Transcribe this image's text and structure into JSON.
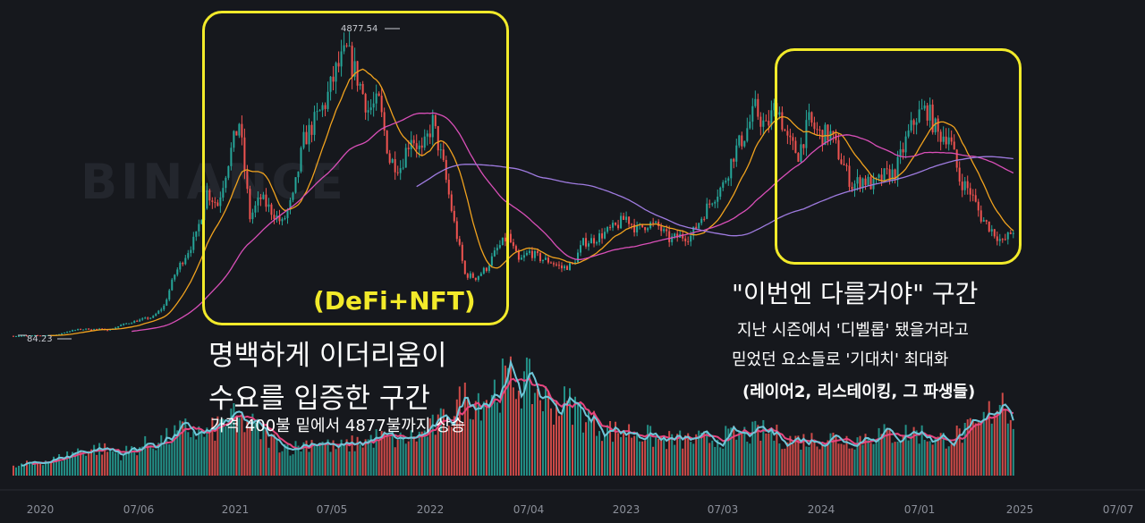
{
  "chart_data": {
    "type": "candlestick",
    "watermark": "BINANCE",
    "x_ticks": [
      "2020",
      "07/06",
      "2021",
      "07/05",
      "2022",
      "07/04",
      "2023",
      "07/03",
      "2024",
      "07/01",
      "2025",
      "07/07"
    ],
    "price_labels": {
      "high": "4877.54",
      "low": "84.23"
    },
    "colors": {
      "up": "#26a69a",
      "down": "#ef5350",
      "ma_fast": "#f0a21e",
      "ma_mid": "#d94fb8",
      "ma_slow": "#9f7be0",
      "vol_ma_fast": "#6ec6d8",
      "vol_ma_slow": "#e8457f"
    },
    "close_series": [
      [
        0,
        130
      ],
      [
        2,
        135
      ],
      [
        4,
        145
      ],
      [
        5,
        200
      ],
      [
        6,
        230
      ],
      [
        7,
        240
      ],
      [
        8,
        235
      ],
      [
        9,
        230
      ],
      [
        10,
        300
      ],
      [
        11,
        350
      ],
      [
        12,
        390
      ],
      [
        13,
        430
      ],
      [
        14,
        600
      ],
      [
        15,
        1100
      ],
      [
        16,
        1400
      ],
      [
        17,
        1700
      ],
      [
        18,
        2400
      ],
      [
        19,
        2200
      ],
      [
        20,
        2900
      ],
      [
        21,
        3500
      ],
      [
        22,
        2000
      ],
      [
        23,
        2300
      ],
      [
        24,
        2100
      ],
      [
        25,
        1900
      ],
      [
        26,
        2300
      ],
      [
        27,
        3200
      ],
      [
        28,
        3500
      ],
      [
        29,
        3800
      ],
      [
        30,
        4300
      ],
      [
        31,
        4600
      ],
      [
        32,
        4200
      ],
      [
        33,
        3700
      ],
      [
        34,
        3800
      ],
      [
        35,
        2900
      ],
      [
        36,
        2800
      ],
      [
        37,
        3300
      ],
      [
        38,
        3000
      ],
      [
        39,
        3500
      ],
      [
        40,
        2800
      ],
      [
        41,
        1900
      ],
      [
        42,
        1100
      ],
      [
        43,
        1050
      ],
      [
        44,
        1200
      ],
      [
        45,
        1500
      ],
      [
        46,
        1700
      ],
      [
        47,
        1300
      ],
      [
        48,
        1450
      ],
      [
        49,
        1350
      ],
      [
        50,
        1300
      ],
      [
        51,
        1200
      ],
      [
        52,
        1250
      ],
      [
        53,
        1600
      ],
      [
        54,
        1650
      ],
      [
        55,
        1750
      ],
      [
        56,
        1850
      ],
      [
        57,
        2000
      ],
      [
        58,
        1800
      ],
      [
        59,
        1900
      ],
      [
        60,
        1850
      ],
      [
        61,
        1650
      ],
      [
        62,
        1700
      ],
      [
        63,
        1700
      ],
      [
        64,
        2000
      ],
      [
        65,
        2300
      ],
      [
        66,
        2500
      ],
      [
        67,
        3000
      ],
      [
        68,
        3300
      ],
      [
        69,
        3700
      ],
      [
        70,
        3400
      ],
      [
        71,
        3800
      ],
      [
        72,
        3200
      ],
      [
        73,
        3000
      ],
      [
        74,
        3500
      ],
      [
        75,
        3300
      ],
      [
        76,
        3300
      ],
      [
        77,
        2900
      ],
      [
        78,
        2500
      ],
      [
        79,
        2600
      ],
      [
        80,
        2500
      ],
      [
        81,
        2650
      ],
      [
        82,
        2700
      ],
      [
        83,
        3200
      ],
      [
        84,
        3600
      ],
      [
        85,
        3700
      ],
      [
        86,
        3300
      ],
      [
        87,
        3300
      ],
      [
        88,
        2600
      ],
      [
        89,
        2400
      ],
      [
        90,
        2000
      ],
      [
        91,
        1800
      ],
      [
        92,
        1600
      ],
      [
        93,
        1800
      ]
    ],
    "volume_series": [
      [
        0,
        0.3
      ],
      [
        2,
        0.5
      ],
      [
        4,
        0.6
      ],
      [
        6,
        0.9
      ],
      [
        8,
        1.0
      ],
      [
        10,
        0.8
      ],
      [
        12,
        1.1
      ],
      [
        14,
        1.3
      ],
      [
        16,
        1.7
      ],
      [
        18,
        1.5
      ],
      [
        20,
        2.1
      ],
      [
        22,
        1.9
      ],
      [
        24,
        1.3
      ],
      [
        26,
        1.0
      ],
      [
        28,
        1.3
      ],
      [
        30,
        1.0
      ],
      [
        32,
        1.2
      ],
      [
        34,
        1.4
      ],
      [
        36,
        1.3
      ],
      [
        38,
        1.5
      ],
      [
        40,
        2.0
      ],
      [
        42,
        2.8
      ],
      [
        44,
        2.9
      ],
      [
        46,
        3.5
      ],
      [
        48,
        3.3
      ],
      [
        50,
        2.6
      ],
      [
        52,
        2.6
      ],
      [
        54,
        1.9
      ],
      [
        56,
        1.6
      ],
      [
        58,
        1.6
      ],
      [
        60,
        1.3
      ],
      [
        62,
        1.3
      ],
      [
        64,
        1.3
      ],
      [
        66,
        1.4
      ],
      [
        68,
        1.5
      ],
      [
        70,
        1.6
      ],
      [
        72,
        1.3
      ],
      [
        74,
        1.3
      ],
      [
        76,
        1.4
      ],
      [
        78,
        1.3
      ],
      [
        80,
        1.5
      ],
      [
        82,
        1.5
      ],
      [
        84,
        1.6
      ],
      [
        86,
        1.3
      ],
      [
        88,
        1.5
      ],
      [
        90,
        1.8
      ],
      [
        92,
        3.0
      ],
      [
        93,
        2.1
      ]
    ],
    "x_range": [
      0,
      104
    ],
    "price_range": [
      0,
      5000
    ]
  },
  "annotations": {
    "box1_label": "(DeFi+NFT)",
    "box1_caption_line1": "명백하게 이더리움이",
    "box1_caption_line2": "수요를 입증한 구간",
    "box1_caption_line3": "가격 400불 밑에서 4877불까지 상승",
    "box2_title": "\"이번엔 다를거야\" 구간",
    "box2_line1": "지난 시즌에서 '디벨롭' 됐을거라고",
    "box2_line2": "믿었던 요소들로 '기대치' 최대화",
    "box2_line3": "(레이어2, 리스테이킹, 그 파생들)"
  }
}
